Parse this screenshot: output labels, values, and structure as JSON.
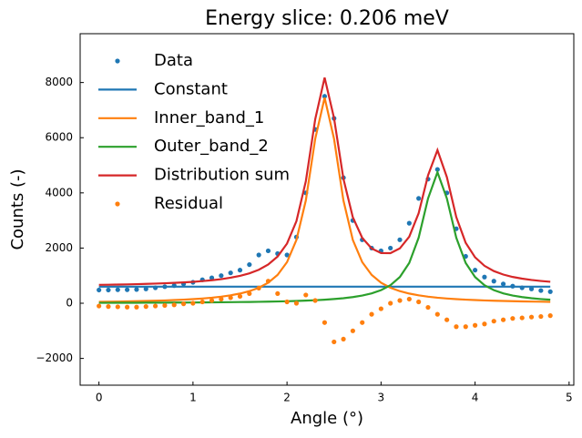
{
  "chart_data": {
    "type": "line",
    "title": "Energy slice: 0.206 meV",
    "xlabel": "Angle (°)",
    "ylabel": "Counts (-)",
    "x": [
      0,
      0.1,
      0.2,
      0.3,
      0.4,
      0.5,
      0.6,
      0.7,
      0.8,
      0.9,
      1,
      1.1,
      1.2,
      1.3,
      1.4,
      1.5,
      1.6,
      1.7,
      1.8,
      1.9,
      2,
      2.1,
      2.2,
      2.3,
      2.4,
      2.5,
      2.6,
      2.7,
      2.8,
      2.9,
      3,
      3.1,
      3.2,
      3.3,
      3.4,
      3.5,
      3.6,
      3.7,
      3.8,
      3.9,
      4,
      4.1,
      4.2,
      4.3,
      4.4,
      4.5,
      4.6,
      4.7,
      4.8
    ],
    "series": [
      {
        "name": "Data",
        "type": "scatter",
        "color": "#1f77b4",
        "values": [
          480,
          480,
          490,
          490,
          500,
          520,
          560,
          600,
          640,
          700,
          760,
          850,
          920,
          1000,
          1100,
          1200,
          1400,
          1750,
          1900,
          1800,
          1750,
          2400,
          4000,
          6300,
          7500,
          6700,
          4550,
          3000,
          2300,
          2000,
          1900,
          2000,
          2300,
          2900,
          3800,
          4500,
          4850,
          4000,
          2700,
          1700,
          1200,
          950,
          800,
          700,
          620,
          560,
          520,
          460,
          420
        ]
      },
      {
        "name": "Constant",
        "type": "line",
        "color": "#1f77b4",
        "values": [
          600,
          600,
          600,
          600,
          600,
          600,
          600,
          600,
          600,
          600,
          600,
          600,
          600,
          600,
          600,
          600,
          600,
          600,
          600,
          600,
          600,
          600,
          600,
          600,
          600,
          600,
          600,
          600,
          600,
          600,
          600,
          600,
          600,
          600,
          600,
          600,
          600,
          600,
          600,
          600,
          600,
          600,
          600,
          600,
          600,
          600,
          600,
          600,
          600
        ]
      },
      {
        "name": "Inner_band_1",
        "type": "line",
        "color": "#ff7f0e",
        "values": [
          51,
          56,
          61,
          67,
          74,
          82,
          91,
          102,
          115,
          130,
          149,
          172,
          201,
          238,
          287,
          351,
          438,
          562,
          745,
          1028,
          1490,
          2292,
          3725,
          5960,
          7450,
          5960,
          3725,
          2292,
          1490,
          1028,
          745,
          562,
          438,
          351,
          287,
          238,
          201,
          172,
          149,
          130,
          115,
          102,
          91,
          82,
          74,
          67,
          61,
          56,
          51
        ]
      },
      {
        "name": "Outer_band_2",
        "type": "line",
        "color": "#2ca02c",
        "values": [
          15,
          15,
          16,
          17,
          18,
          20,
          21,
          22,
          24,
          26,
          28,
          30,
          33,
          36,
          39,
          43,
          47,
          52,
          58,
          65,
          73,
          83,
          95,
          110,
          128,
          152,
          183,
          224,
          279,
          358,
          475,
          655,
          950,
          1462,
          2375,
          3800,
          4750,
          3800,
          2375,
          1462,
          950,
          655,
          475,
          358,
          279,
          224,
          183,
          152,
          128
        ]
      },
      {
        "name": "Distribution sum",
        "type": "line",
        "color": "#d62728",
        "values": [
          666,
          671,
          677,
          684,
          692,
          702,
          712,
          724,
          739,
          756,
          777,
          802,
          834,
          874,
          926,
          994,
          1085,
          1214,
          1403,
          1693,
          2163,
          2975,
          4420,
          6670,
          8178,
          6712,
          4508,
          3116,
          2369,
          1986,
          1820,
          1817,
          1988,
          2413,
          3262,
          4638,
          5551,
          4572,
          3124,
          2192,
          1665,
          1357,
          1166,
          1040,
          953,
          891,
          844,
          808,
          779
        ]
      },
      {
        "name": "Residual",
        "type": "scatter",
        "color": "#ff7f0e",
        "values": [
          -100,
          -120,
          -130,
          -140,
          -140,
          -120,
          -100,
          -80,
          -60,
          -20,
          0,
          50,
          100,
          150,
          200,
          250,
          350,
          550,
          800,
          350,
          50,
          0,
          300,
          100,
          -700,
          -1400,
          -1300,
          -1000,
          -700,
          -400,
          -200,
          0,
          100,
          150,
          50,
          -150,
          -400,
          -600,
          -850,
          -850,
          -800,
          -750,
          -650,
          -600,
          -550,
          -530,
          -500,
          -480,
          -450
        ]
      }
    ],
    "xlim": [
      -0.2,
      5.05
    ],
    "ylim": [
      -2970,
      9770
    ],
    "xticks": [
      0,
      1,
      2,
      3,
      4,
      5
    ],
    "yticks": [
      {
        "value": -2000,
        "label": "−2000"
      },
      0,
      2000,
      4000,
      6000,
      8000
    ],
    "legend": "upper left"
  }
}
